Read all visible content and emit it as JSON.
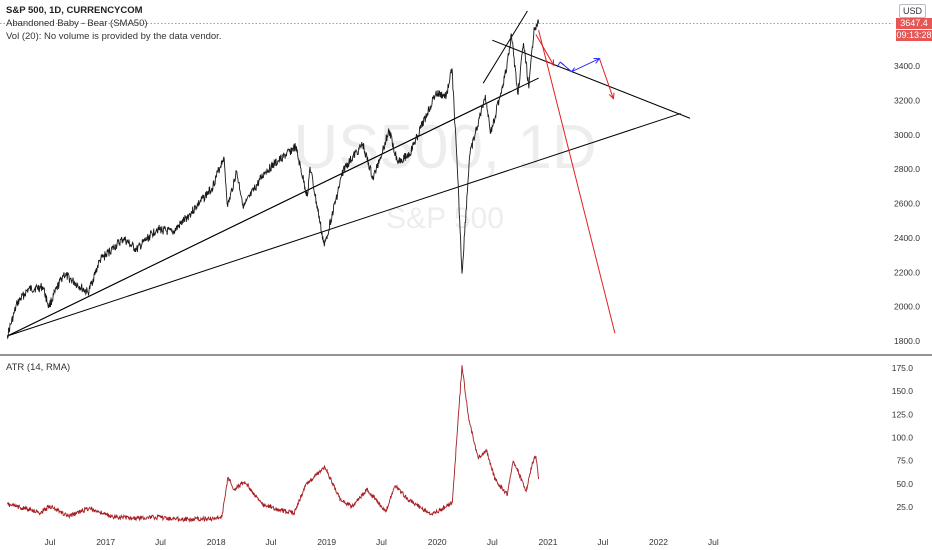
{
  "header": {
    "title": "S&P 500, 1D, CURRENCYCOM",
    "indicator_line": "Abandoned Baby - Bear (SMA50)",
    "volume_line": "Vol (20): No volume is provided by the data vendor.",
    "currency_button": "USD",
    "last_price": "3647.4",
    "countdown": "09:13:28"
  },
  "watermark": {
    "symbol": "US500, 1D",
    "name": "S&P 500"
  },
  "atr_panel": {
    "label": "ATR (14, RMA)"
  },
  "colors": {
    "price_line": "#1a1a1a",
    "atr_line": "#a61e22",
    "trendline": "#000000",
    "forecast_red": "#e02020",
    "forecast_blue": "#2e2ef0",
    "price_tag_bg": "#e55654",
    "divider": "#2a2a2a"
  },
  "chart_data": [
    {
      "type": "line",
      "title": "S&P 500, 1D, CURRENCYCOM",
      "x_tick_labels": [
        "Jul",
        "2017",
        "Jul",
        "2018",
        "Jul",
        "2019",
        "Jul",
        "2020",
        "Jul",
        "2021",
        "Jul",
        "2022",
        "Jul"
      ],
      "y_tick_labels": [
        "3400.0",
        "3200.0",
        "3000.0",
        "2800.0",
        "2600.0",
        "2400.0",
        "2200.0",
        "2000.0",
        "1800.0"
      ],
      "ylim": [
        1750,
        3700
      ],
      "last_price": 3647.4,
      "series": [
        {
          "points": [
            [
              "2016-02-11",
              1829
            ],
            [
              "2016-03-15",
              2020
            ],
            [
              "2016-04-20",
              2100
            ],
            [
              "2016-06-08",
              2115
            ],
            [
              "2016-06-27",
              2000
            ],
            [
              "2016-08-15",
              2190
            ],
            [
              "2016-11-04",
              2080
            ],
            [
              "2016-12-13",
              2270
            ],
            [
              "2017-03-01",
              2395
            ],
            [
              "2017-04-13",
              2330
            ],
            [
              "2017-06-19",
              2453
            ],
            [
              "2017-08-10",
              2430
            ],
            [
              "2017-10-02",
              2530
            ],
            [
              "2017-12-18",
              2690
            ],
            [
              "2018-01-26",
              2872
            ],
            [
              "2018-02-08",
              2581
            ],
            [
              "2018-03-09",
              2786
            ],
            [
              "2018-04-02",
              2580
            ],
            [
              "2018-06-12",
              2786
            ],
            [
              "2018-07-25",
              2846
            ],
            [
              "2018-09-20",
              2930
            ],
            [
              "2018-10-29",
              2641
            ],
            [
              "2018-11-07",
              2813
            ],
            [
              "2018-12-24",
              2351
            ],
            [
              "2019-02-25",
              2796
            ],
            [
              "2019-04-30",
              2945
            ],
            [
              "2019-06-03",
              2744
            ],
            [
              "2019-07-26",
              3025
            ],
            [
              "2019-08-23",
              2847
            ],
            [
              "2019-10-02",
              2887
            ],
            [
              "2019-12-27",
              3240
            ],
            [
              "2020-01-31",
              3225
            ],
            [
              "2020-02-19",
              3386
            ],
            [
              "2020-03-09",
              2746
            ],
            [
              "2020-03-23",
              2192
            ],
            [
              "2020-04-17",
              2875
            ],
            [
              "2020-06-08",
              3232
            ],
            [
              "2020-06-26",
              3009
            ],
            [
              "2020-08-18",
              3389
            ],
            [
              "2020-09-02",
              3588
            ],
            [
              "2020-09-23",
              3237
            ],
            [
              "2020-10-12",
              3534
            ],
            [
              "2020-10-30",
              3270
            ],
            [
              "2020-11-16",
              3626
            ],
            [
              "2020-11-25",
              3640
            ],
            [
              "2020-12-01",
              3647.4
            ]
          ]
        }
      ],
      "trendlines": [
        {
          "from": [
            "2016-02-11",
            1829
          ],
          "to": [
            "2020-12-01",
            3330
          ]
        },
        {
          "from": [
            "2016-02-11",
            1829
          ],
          "to": [
            "2020-09-01",
            3253
          ]
        },
        {
          "from": [
            "2016-02-11",
            1829
          ],
          "to": [
            "2022-03-15",
            3124
          ]
        },
        {
          "from": [
            "2020-06-01",
            3300
          ],
          "to": [
            "2020-10-25",
            3720
          ]
        },
        {
          "from": [
            "2020-07-01",
            3550
          ],
          "to": [
            "2022-04-15",
            3096
          ]
        }
      ],
      "forecast_red_lines": [
        {
          "from": [
            "2020-11-22",
            3583
          ],
          "to": [
            "2021-01-20",
            3404
          ]
        },
        {
          "from": [
            "2020-12-01",
            3608
          ],
          "to": [
            "2021-08-10",
            1845
          ]
        },
        {
          "from": [
            "2021-06-20",
            3443
          ],
          "to": [
            "2021-08-05",
            3210
          ]
        }
      ],
      "forecast_blue_path": [
        [
          "2021-02-10",
          3423
        ],
        [
          "2021-03-20",
          3367
        ],
        [
          "2021-06-20",
          3443
        ]
      ]
    },
    {
      "type": "line",
      "title": "ATR (14, RMA)",
      "x_tick_labels": [
        "Jul",
        "2017",
        "Jul",
        "2018",
        "Jul",
        "2019",
        "Jul",
        "2020",
        "Jul",
        "2021",
        "Jul",
        "2022",
        "Jul"
      ],
      "y_tick_labels": [
        "175.0",
        "150.0",
        "125.0",
        "100.0",
        "75.0",
        "50.0",
        "25.0"
      ],
      "ylim": [
        0,
        190
      ],
      "series": [
        {
          "points": [
            [
              "2016-02-11",
              28
            ],
            [
              "2016-06-01",
              19
            ],
            [
              "2016-06-28",
              26
            ],
            [
              "2016-09-01",
              15
            ],
            [
              "2016-11-08",
              24
            ],
            [
              "2017-01-15",
              15
            ],
            [
              "2017-04-01",
              13
            ],
            [
              "2017-06-15",
              14
            ],
            [
              "2017-09-01",
              12
            ],
            [
              "2017-12-01",
              12
            ],
            [
              "2018-01-20",
              14
            ],
            [
              "2018-02-09",
              57
            ],
            [
              "2018-03-01",
              44
            ],
            [
              "2018-04-06",
              52
            ],
            [
              "2018-06-01",
              28
            ],
            [
              "2018-08-01",
              22
            ],
            [
              "2018-09-15",
              18
            ],
            [
              "2018-10-25",
              50
            ],
            [
              "2018-12-26",
              68
            ],
            [
              "2019-02-15",
              33
            ],
            [
              "2019-03-25",
              25
            ],
            [
              "2019-05-14",
              44
            ],
            [
              "2019-07-15",
              20
            ],
            [
              "2019-08-15",
              48
            ],
            [
              "2019-10-01",
              32
            ],
            [
              "2019-12-15",
              17
            ],
            [
              "2020-01-28",
              25
            ],
            [
              "2020-02-20",
              30
            ],
            [
              "2020-03-23",
              178
            ],
            [
              "2020-04-15",
              118
            ],
            [
              "2020-05-15",
              78
            ],
            [
              "2020-06-12",
              85
            ],
            [
              "2020-07-10",
              55
            ],
            [
              "2020-08-20",
              38
            ],
            [
              "2020-09-08",
              75
            ],
            [
              "2020-10-01",
              58
            ],
            [
              "2020-10-21",
              42
            ],
            [
              "2020-11-10",
              73
            ],
            [
              "2020-11-22",
              80
            ],
            [
              "2020-12-01",
              55
            ]
          ]
        }
      ]
    }
  ]
}
